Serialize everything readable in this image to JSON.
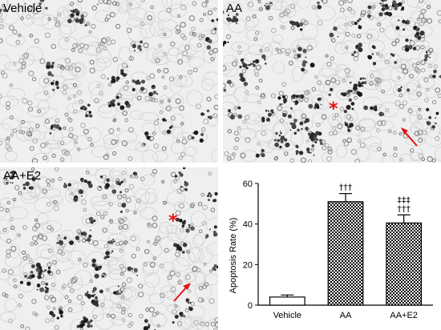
{
  "panels": [
    {
      "id": "vehicle",
      "label": "Vehicle"
    },
    {
      "id": "aa",
      "label": "AA"
    },
    {
      "id": "aae2",
      "label": "AA+E2"
    }
  ],
  "markers": {
    "asterisk": "*"
  },
  "colors": {
    "marker": "#e01414",
    "bar_fill": "#000000",
    "axis": "#000000"
  },
  "chart_data": {
    "type": "bar",
    "ylabel": "Apoptosis Rate (%)",
    "categories": [
      "Vehicle",
      "AA",
      "AA+E2"
    ],
    "values": [
      4,
      51,
      40.5
    ],
    "errors": [
      1,
      4,
      4
    ],
    "ylim": [
      0,
      60
    ],
    "yticks": [
      0,
      20,
      40,
      60
    ],
    "annotations": [
      {
        "category": "AA",
        "lines": [
          "†††"
        ]
      },
      {
        "category": "AA+E2",
        "lines": [
          "‡‡‡",
          "†††"
        ]
      }
    ],
    "bar_patterns": [
      "none",
      "checkerboard",
      "checkerboard"
    ]
  }
}
